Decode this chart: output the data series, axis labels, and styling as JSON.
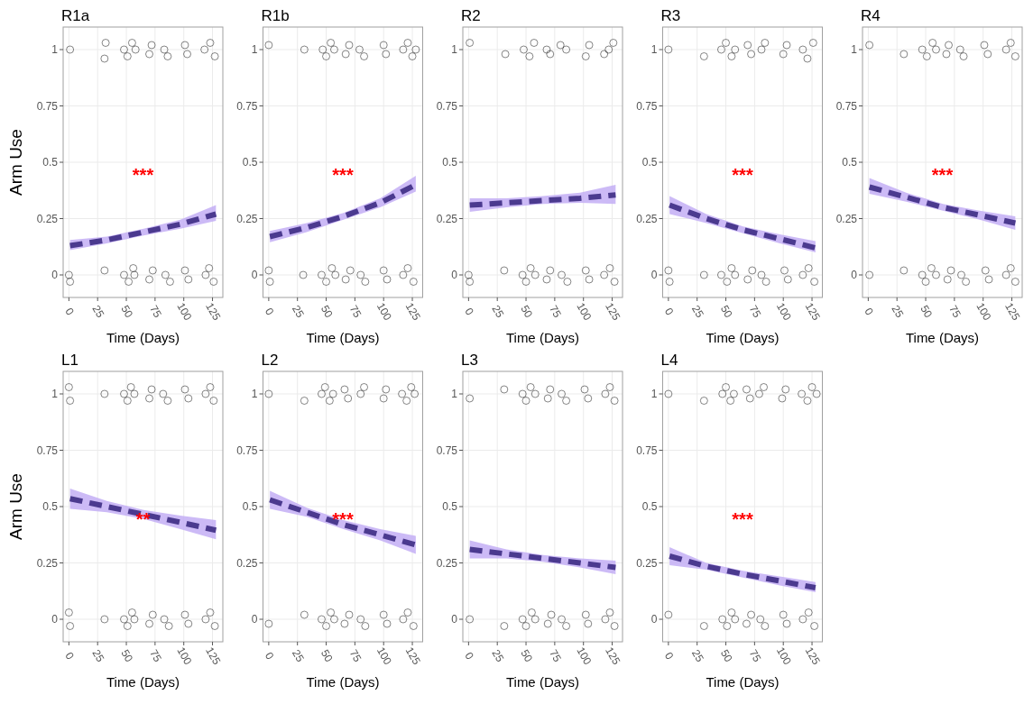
{
  "chart_data": [
    {
      "type": "line",
      "title": "R1a",
      "xlabel": "Time (Days)",
      "ylabel": "Arm Use",
      "xlim": [
        -5,
        134
      ],
      "ylim": [
        -0.1,
        1.1
      ],
      "xticks": [
        0,
        25,
        50,
        75,
        100,
        125
      ],
      "yticks": [
        0,
        0.25,
        0.5,
        0.75,
        1
      ],
      "grid": true,
      "line_style": "dashed",
      "annotations": [
        "***"
      ],
      "series": [
        {
          "type": "scatter",
          "marker": "circle",
          "color": "#000000",
          "x": [
            1,
            31,
            32,
            48,
            51,
            55,
            58,
            70,
            72,
            83,
            86,
            101,
            103,
            118,
            123,
            127,
            0,
            1,
            31,
            48,
            52,
            56,
            57,
            70,
            73,
            84,
            88,
            101,
            104,
            119,
            122,
            126
          ],
          "values": [
            1,
            0.96,
            1.03,
            1,
            0.97,
            1.03,
            1,
            0.98,
            1.02,
            1,
            0.97,
            1.02,
            0.98,
            1,
            1.03,
            0.97,
            0,
            -0.03,
            0.02,
            0,
            -0.03,
            0.03,
            0,
            -0.02,
            0.02,
            0,
            -0.03,
            0.02,
            -0.02,
            0,
            0.03,
            -0.03
          ]
        },
        {
          "color": "#4b3a8f",
          "x": [
            1,
            33,
            65,
            97,
            128
          ],
          "values": [
            0.13,
            0.155,
            0.19,
            0.225,
            0.27
          ],
          "lower": [
            0.11,
            0.14,
            0.175,
            0.205,
            0.24
          ],
          "upper": [
            0.155,
            0.17,
            0.205,
            0.245,
            0.31
          ]
        }
      ]
    },
    {
      "type": "line",
      "title": "R1b",
      "xlabel": "Time (Days)",
      "xlim": [
        -5,
        134
      ],
      "ylim": [
        -0.1,
        1.1
      ],
      "xticks": [
        0,
        25,
        50,
        75,
        100,
        125
      ],
      "yticks": [
        0,
        0.25,
        0.5,
        0.75,
        1
      ],
      "grid": true,
      "line_style": "dashed",
      "annotations": [
        "***"
      ],
      "series": [
        {
          "type": "scatter",
          "marker": "circle",
          "color": "#000000",
          "x": [
            0,
            31,
            47,
            50,
            54,
            57,
            67,
            70,
            79,
            83,
            100,
            102,
            117,
            121,
            125,
            128,
            0,
            1,
            30,
            46,
            50,
            55,
            58,
            67,
            71,
            80,
            84,
            100,
            103,
            117,
            121,
            126
          ],
          "values": [
            1.02,
            1,
            1,
            0.97,
            1.03,
            1,
            0.98,
            1.02,
            1,
            0.97,
            1.02,
            0.98,
            1,
            1.03,
            0.97,
            1,
            0.02,
            -0.03,
            0,
            0,
            -0.03,
            0.03,
            0,
            -0.02,
            0.02,
            0,
            -0.03,
            0.02,
            -0.02,
            0,
            0.03,
            -0.03
          ]
        },
        {
          "color": "#4b3a8f",
          "x": [
            1,
            33,
            65,
            97,
            128
          ],
          "values": [
            0.17,
            0.21,
            0.26,
            0.32,
            0.4
          ],
          "lower": [
            0.145,
            0.19,
            0.245,
            0.3,
            0.37
          ],
          "upper": [
            0.195,
            0.23,
            0.275,
            0.34,
            0.44
          ]
        }
      ]
    },
    {
      "type": "line",
      "title": "R2",
      "xlabel": "Time (Days)",
      "xlim": [
        -5,
        134
      ],
      "ylim": [
        -0.1,
        1.1
      ],
      "xticks": [
        0,
        25,
        50,
        75,
        100,
        125
      ],
      "yticks": [
        0,
        0.25,
        0.5,
        0.75,
        1
      ],
      "grid": true,
      "line_style": "dashed",
      "series": [
        {
          "type": "scatter",
          "marker": "circle",
          "color": "#000000",
          "x": [
            1,
            32,
            48,
            53,
            57,
            68,
            71,
            80,
            85,
            102,
            105,
            118,
            122,
            126,
            0,
            1,
            31,
            47,
            50,
            54,
            58,
            68,
            71,
            81,
            86,
            102,
            105,
            118,
            123,
            127
          ],
          "values": [
            1.03,
            0.98,
            1,
            0.97,
            1.03,
            1,
            0.98,
            1.02,
            1,
            0.97,
            1.02,
            0.98,
            1,
            1.03,
            0,
            -0.03,
            0.02,
            0,
            -0.03,
            0.03,
            0,
            -0.02,
            0.02,
            0,
            -0.03,
            0.02,
            -0.02,
            0,
            0.03,
            -0.03
          ]
        },
        {
          "color": "#4b3a8f",
          "x": [
            1,
            33,
            65,
            97,
            128
          ],
          "values": [
            0.31,
            0.32,
            0.33,
            0.34,
            0.355
          ],
          "lower": [
            0.28,
            0.3,
            0.315,
            0.32,
            0.315
          ],
          "upper": [
            0.34,
            0.34,
            0.35,
            0.365,
            0.4
          ]
        }
      ]
    },
    {
      "type": "line",
      "title": "R3",
      "xlabel": "Time (Days)",
      "xlim": [
        -5,
        134
      ],
      "ylim": [
        -0.1,
        1.1
      ],
      "xticks": [
        0,
        25,
        50,
        75,
        100,
        125
      ],
      "yticks": [
        0,
        0.25,
        0.5,
        0.75,
        1
      ],
      "grid": true,
      "line_style": "dashed",
      "annotations": [
        "***"
      ],
      "series": [
        {
          "type": "scatter",
          "marker": "circle",
          "color": "#000000",
          "x": [
            0,
            31,
            46,
            50,
            55,
            58,
            69,
            72,
            81,
            84,
            100,
            103,
            117,
            121,
            126,
            0,
            1,
            31,
            46,
            51,
            55,
            58,
            69,
            73,
            81,
            85,
            101,
            104,
            117,
            122,
            127
          ],
          "values": [
            1,
            0.97,
            1,
            1.03,
            0.97,
            1,
            1.02,
            0.98,
            1,
            1.03,
            0.98,
            1.02,
            1,
            0.96,
            1.03,
            0.02,
            -0.03,
            0,
            0,
            -0.03,
            0.03,
            0,
            -0.02,
            0.02,
            0,
            -0.03,
            0.02,
            -0.02,
            0,
            0.03,
            -0.03
          ]
        },
        {
          "color": "#4b3a8f",
          "x": [
            1,
            33,
            65,
            97,
            128
          ],
          "values": [
            0.31,
            0.25,
            0.2,
            0.16,
            0.12
          ],
          "lower": [
            0.27,
            0.23,
            0.185,
            0.14,
            0.1
          ],
          "upper": [
            0.35,
            0.27,
            0.215,
            0.18,
            0.15
          ]
        }
      ]
    },
    {
      "type": "line",
      "title": "R4",
      "xlabel": "Time (Days)",
      "xlim": [
        -5,
        134
      ],
      "ylim": [
        -0.1,
        1.1
      ],
      "xticks": [
        0,
        25,
        50,
        75,
        100,
        125
      ],
      "yticks": [
        0,
        0.25,
        0.5,
        0.75,
        1
      ],
      "grid": true,
      "line_style": "dashed",
      "annotations": [
        "***"
      ],
      "series": [
        {
          "type": "scatter",
          "marker": "circle",
          "color": "#000000",
          "x": [
            1,
            31,
            47,
            51,
            56,
            59,
            68,
            70,
            80,
            83,
            101,
            104,
            120,
            124,
            128,
            1,
            31,
            47,
            50,
            55,
            59,
            69,
            72,
            81,
            85,
            102,
            105,
            120,
            124,
            128
          ],
          "values": [
            1.02,
            0.98,
            1,
            0.97,
            1.03,
            1,
            0.98,
            1.02,
            1,
            0.97,
            1.02,
            0.98,
            1,
            1.03,
            0.97,
            0,
            0.02,
            0,
            -0.03,
            0.03,
            0,
            -0.02,
            0.02,
            0,
            -0.03,
            0.02,
            -0.02,
            0,
            0.03,
            -0.03
          ]
        },
        {
          "color": "#4b3a8f",
          "x": [
            1,
            33,
            65,
            97,
            128
          ],
          "values": [
            0.39,
            0.345,
            0.3,
            0.265,
            0.23
          ],
          "lower": [
            0.36,
            0.325,
            0.285,
            0.245,
            0.2
          ],
          "upper": [
            0.43,
            0.365,
            0.315,
            0.285,
            0.26
          ]
        }
      ]
    },
    {
      "type": "line",
      "title": "L1",
      "xlabel": "Time (Days)",
      "ylabel": "Arm Use",
      "xlim": [
        -5,
        134
      ],
      "ylim": [
        -0.1,
        1.1
      ],
      "xticks": [
        0,
        25,
        50,
        75,
        100,
        125
      ],
      "yticks": [
        0,
        0.25,
        0.5,
        0.75,
        1
      ],
      "grid": true,
      "line_style": "dashed",
      "annotations": [
        "**"
      ],
      "series": [
        {
          "type": "scatter",
          "marker": "circle",
          "color": "#000000",
          "x": [
            0,
            1,
            31,
            48,
            51,
            54,
            57,
            70,
            72,
            82,
            86,
            101,
            104,
            119,
            123,
            126,
            0,
            1,
            31,
            48,
            51,
            55,
            57,
            70,
            73,
            83,
            87,
            101,
            104,
            119,
            123,
            127
          ],
          "values": [
            1.03,
            0.97,
            1,
            1,
            0.97,
            1.03,
            1,
            0.98,
            1.02,
            1,
            0.97,
            1.02,
            0.98,
            1,
            1.03,
            0.97,
            0.03,
            -0.03,
            0,
            0,
            -0.03,
            0.03,
            0,
            -0.02,
            0.02,
            0,
            -0.03,
            0.02,
            -0.02,
            0,
            0.03,
            -0.03
          ]
        },
        {
          "color": "#4b3a8f",
          "x": [
            1,
            33,
            65,
            97,
            128
          ],
          "values": [
            0.535,
            0.5,
            0.465,
            0.43,
            0.395
          ],
          "lower": [
            0.49,
            0.475,
            0.445,
            0.4,
            0.355
          ],
          "upper": [
            0.58,
            0.525,
            0.485,
            0.46,
            0.44
          ]
        }
      ]
    },
    {
      "type": "line",
      "title": "L2",
      "xlabel": "Time (Days)",
      "xlim": [
        -5,
        134
      ],
      "ylim": [
        -0.1,
        1.1
      ],
      "xticks": [
        0,
        25,
        50,
        75,
        100,
        125
      ],
      "yticks": [
        0,
        0.25,
        0.5,
        0.75,
        1
      ],
      "grid": true,
      "line_style": "dashed",
      "annotations": [
        "***"
      ],
      "series": [
        {
          "type": "scatter",
          "marker": "circle",
          "color": "#000000",
          "x": [
            0,
            31,
            46,
            49,
            53,
            56,
            66,
            69,
            80,
            83,
            100,
            102,
            116,
            120,
            124,
            127,
            0,
            31,
            46,
            50,
            54,
            57,
            66,
            70,
            80,
            84,
            100,
            103,
            117,
            121,
            126
          ],
          "values": [
            1,
            0.97,
            1,
            1.03,
            0.97,
            1,
            1.02,
            0.98,
            1,
            1.03,
            0.98,
            1.02,
            1,
            0.97,
            1.03,
            1,
            -0.02,
            0.02,
            0,
            -0.03,
            0.03,
            0,
            -0.02,
            0.02,
            0,
            -0.03,
            0.02,
            -0.02,
            0,
            0.03,
            -0.03
          ]
        },
        {
          "color": "#4b3a8f",
          "x": [
            1,
            33,
            65,
            97,
            128
          ],
          "values": [
            0.53,
            0.475,
            0.42,
            0.375,
            0.33
          ],
          "lower": [
            0.49,
            0.455,
            0.4,
            0.35,
            0.29
          ],
          "upper": [
            0.57,
            0.495,
            0.44,
            0.4,
            0.37
          ]
        }
      ]
    },
    {
      "type": "line",
      "title": "L3",
      "xlabel": "Time (Days)",
      "xlim": [
        -5,
        134
      ],
      "ylim": [
        -0.1,
        1.1
      ],
      "xticks": [
        0,
        25,
        50,
        75,
        100,
        125
      ],
      "yticks": [
        0,
        0.25,
        0.5,
        0.75,
        1
      ],
      "grid": true,
      "line_style": "dashed",
      "series": [
        {
          "type": "scatter",
          "marker": "circle",
          "color": "#000000",
          "x": [
            1,
            31,
            47,
            50,
            54,
            58,
            69,
            71,
            81,
            85,
            101,
            104,
            119,
            123,
            127,
            1,
            31,
            47,
            50,
            55,
            58,
            69,
            72,
            81,
            85,
            102,
            104,
            119,
            123,
            127
          ],
          "values": [
            0.98,
            1.02,
            1,
            0.97,
            1.03,
            1,
            0.98,
            1.02,
            1,
            0.97,
            1.02,
            0.98,
            1,
            1.03,
            0.97,
            0,
            -0.03,
            0,
            -0.03,
            0.03,
            0,
            -0.02,
            0.02,
            0,
            -0.03,
            0.02,
            -0.02,
            0,
            0.03,
            -0.03
          ]
        },
        {
          "color": "#4b3a8f",
          "x": [
            1,
            33,
            65,
            97,
            128
          ],
          "values": [
            0.31,
            0.29,
            0.27,
            0.25,
            0.23
          ],
          "lower": [
            0.27,
            0.27,
            0.255,
            0.23,
            0.2
          ],
          "upper": [
            0.35,
            0.31,
            0.285,
            0.27,
            0.26
          ]
        }
      ]
    },
    {
      "type": "line",
      "title": "L4",
      "xlabel": "Time (Days)",
      "xlim": [
        -5,
        134
      ],
      "ylim": [
        -0.1,
        1.1
      ],
      "xticks": [
        0,
        25,
        50,
        75,
        100,
        125
      ],
      "yticks": [
        0,
        0.25,
        0.5,
        0.75,
        1
      ],
      "grid": true,
      "line_style": "dashed",
      "annotations": [
        "***"
      ],
      "series": [
        {
          "type": "scatter",
          "marker": "circle",
          "color": "#000000",
          "x": [
            0,
            31,
            47,
            50,
            54,
            57,
            68,
            71,
            79,
            83,
            99,
            102,
            116,
            121,
            125,
            129,
            0,
            31,
            47,
            51,
            55,
            58,
            68,
            72,
            80,
            84,
            100,
            103,
            117,
            122,
            127
          ],
          "values": [
            1,
            0.97,
            1,
            1.03,
            0.97,
            1,
            1.02,
            0.98,
            1,
            1.03,
            0.98,
            1.02,
            1,
            0.97,
            1.03,
            1,
            0.02,
            -0.03,
            0,
            -0.03,
            0.03,
            0,
            -0.02,
            0.02,
            0,
            -0.03,
            0.02,
            -0.02,
            0,
            0.03,
            -0.03
          ]
        },
        {
          "color": "#4b3a8f",
          "x": [
            1,
            33,
            65,
            97,
            128
          ],
          "values": [
            0.28,
            0.235,
            0.2,
            0.17,
            0.14
          ],
          "lower": [
            0.24,
            0.22,
            0.185,
            0.15,
            0.12
          ],
          "upper": [
            0.32,
            0.25,
            0.215,
            0.19,
            0.165
          ]
        }
      ]
    }
  ]
}
